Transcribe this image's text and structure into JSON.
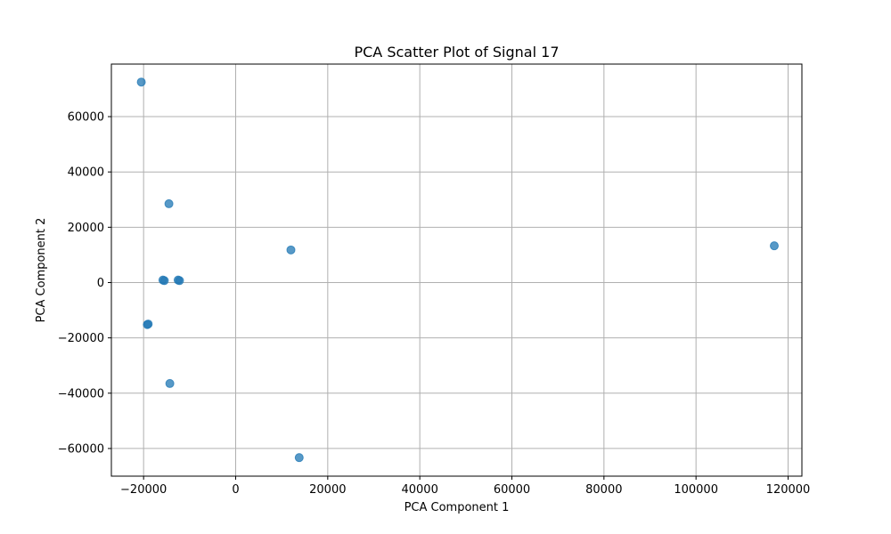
{
  "chart_data": {
    "type": "scatter",
    "title": "PCA Scatter Plot of Signal 17",
    "xlabel": "PCA Component 1",
    "ylabel": "PCA Component 2",
    "xlim": [
      -27000,
      123000
    ],
    "ylim": [
      -70000,
      79000
    ],
    "x_ticks": [
      -20000,
      0,
      20000,
      40000,
      60000,
      80000,
      100000,
      120000
    ],
    "x_tick_labels": [
      "−20000",
      "0",
      "20000",
      "40000",
      "60000",
      "80000",
      "100000",
      "120000"
    ],
    "y_ticks": [
      -60000,
      -40000,
      -20000,
      0,
      20000,
      40000,
      60000
    ],
    "y_tick_labels": [
      "−60000",
      "−40000",
      "−20000",
      "0",
      "20000",
      "40000",
      "60000"
    ],
    "grid": true,
    "marker_color": "#1f77b4",
    "marker_alpha": 0.75,
    "points": [
      {
        "x": -20500,
        "y": 72500
      },
      {
        "x": -14500,
        "y": 28500
      },
      {
        "x": 12000,
        "y": 11800
      },
      {
        "x": 117000,
        "y": 13300
      },
      {
        "x": -15800,
        "y": 900
      },
      {
        "x": -15500,
        "y": 700
      },
      {
        "x": -12500,
        "y": 900
      },
      {
        "x": -12200,
        "y": 700
      },
      {
        "x": -19200,
        "y": -15200
      },
      {
        "x": -19000,
        "y": -15000
      },
      {
        "x": -14300,
        "y": -36500
      },
      {
        "x": 13800,
        "y": -63300
      }
    ]
  }
}
